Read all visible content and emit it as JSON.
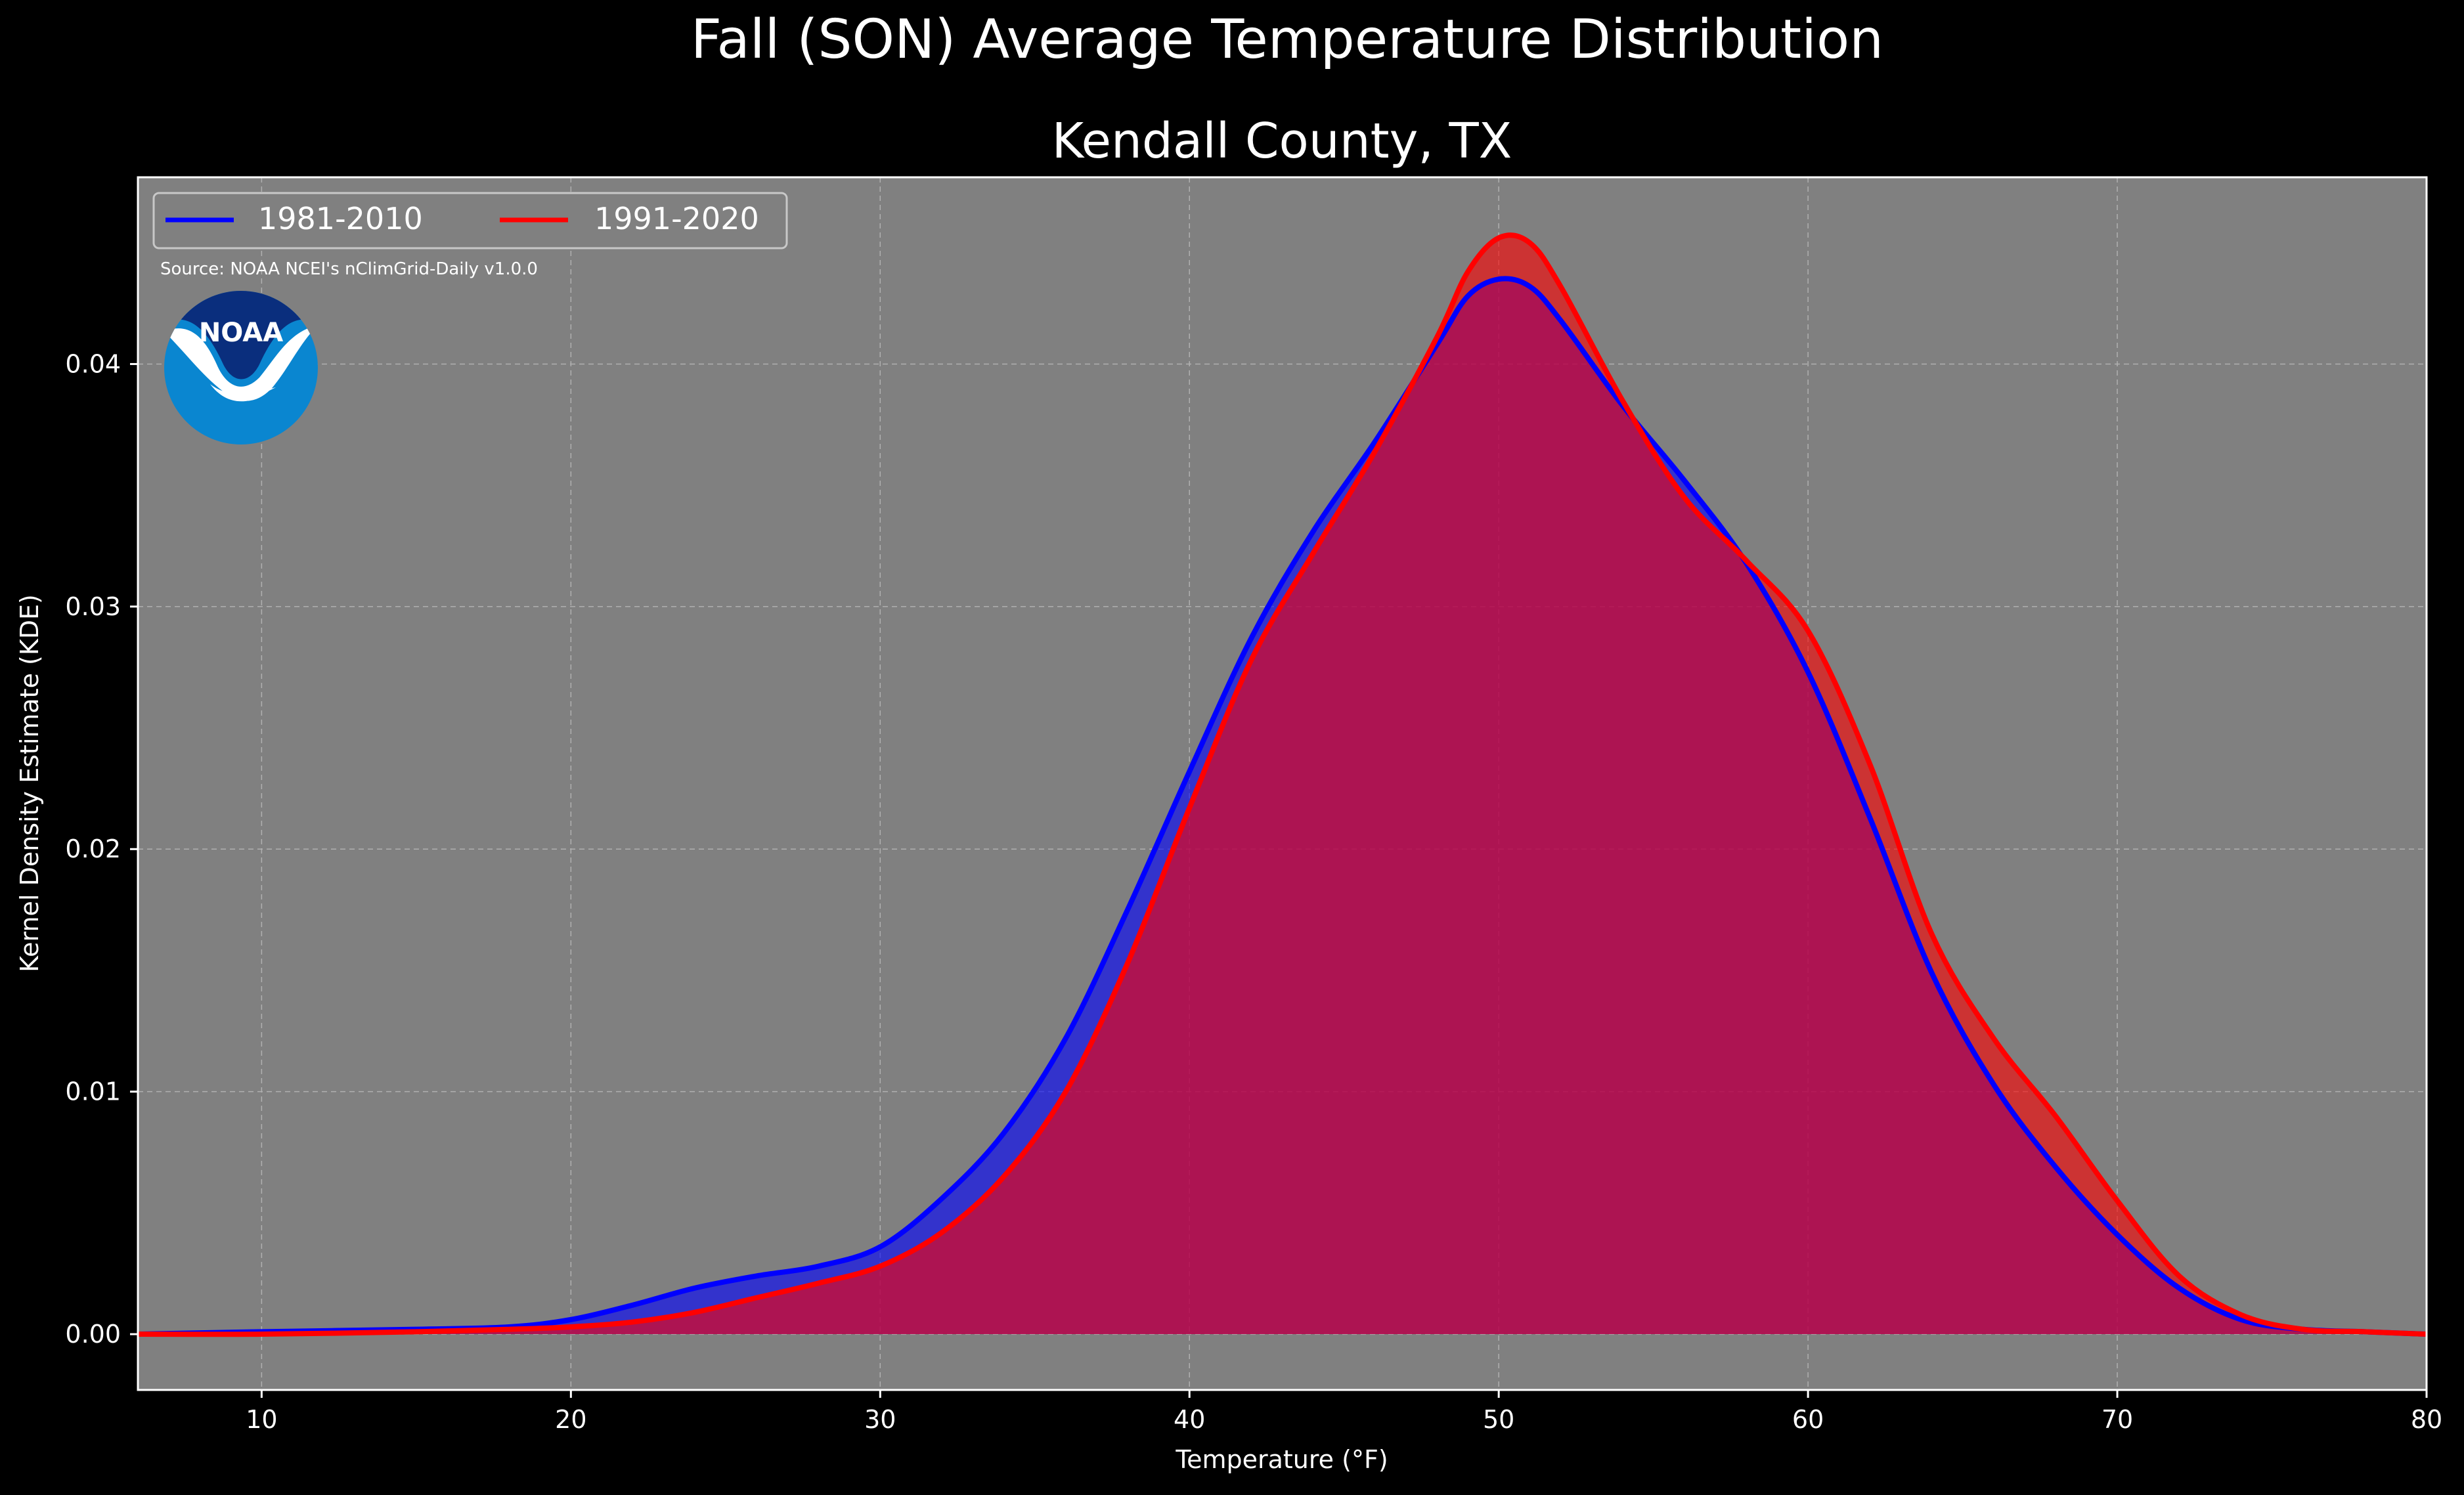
{
  "title": "Fall (SON) Average Temperature Distribution",
  "subtitle": "Kendall County, TX",
  "source": "Source: NOAA NCEI's nClimGrid-Daily v1.0.0",
  "logo_text": "NOAA",
  "colors": {
    "background": "#000000",
    "plot_bg": "#808080",
    "series_1981": "#0000ff",
    "series_1991": "#ff0000",
    "text": "#ffffff",
    "noaa_dark": "#0a2e7d",
    "noaa_light": "#0a86d0"
  },
  "chart_data": {
    "type": "area",
    "title": "Fall (SON) Average Temperature Distribution",
    "subtitle": "Kendall County, TX",
    "xlabel": "Temperature (°F)",
    "ylabel": "Kernel Density Estimate (KDE)",
    "xlim": [
      6,
      80
    ],
    "ylim": [
      -0.0023,
      0.0477
    ],
    "xticks": [
      10,
      20,
      30,
      40,
      50,
      60,
      70,
      80
    ],
    "yticks": [
      0.0,
      0.01,
      0.02,
      0.03,
      0.04
    ],
    "ytick_labels": [
      "0.00",
      "0.01",
      "0.02",
      "0.03",
      "0.04"
    ],
    "grid": true,
    "legend_position": "top-left",
    "series": [
      {
        "name": "1981-2010",
        "color": "#0000ff",
        "x": [
          6,
          10,
          15,
          18,
          20,
          22,
          24,
          26,
          28,
          30,
          32,
          34,
          36,
          38,
          40,
          42,
          44,
          46,
          48,
          49,
          50,
          51,
          52,
          54,
          56,
          58,
          60,
          62,
          64,
          66,
          68,
          70,
          72,
          74,
          76,
          78,
          80
        ],
        "y": [
          0.0,
          0.0001,
          0.0002,
          0.0003,
          0.0006,
          0.0012,
          0.0019,
          0.0024,
          0.0028,
          0.0036,
          0.0056,
          0.0083,
          0.0122,
          0.0175,
          0.0232,
          0.0287,
          0.0331,
          0.0368,
          0.0408,
          0.0428,
          0.0435,
          0.0432,
          0.0418,
          0.0383,
          0.0352,
          0.0318,
          0.0273,
          0.0213,
          0.0149,
          0.0103,
          0.0069,
          0.0041,
          0.0019,
          0.0006,
          0.0002,
          0.0001,
          0.0
        ]
      },
      {
        "name": "1991-2020",
        "color": "#ff0000",
        "x": [
          6,
          10,
          15,
          18,
          20,
          22,
          24,
          26,
          28,
          30,
          32,
          34,
          36,
          38,
          40,
          42,
          44,
          46,
          48,
          49,
          50,
          51,
          52,
          54,
          56,
          58,
          60,
          62,
          64,
          66,
          68,
          70,
          72,
          74,
          76,
          78,
          80
        ],
        "y": [
          0.0,
          0.0,
          0.0001,
          0.0002,
          0.0003,
          0.0005,
          0.0009,
          0.0015,
          0.0021,
          0.0028,
          0.0042,
          0.0065,
          0.01,
          0.0153,
          0.0217,
          0.0278,
          0.0322,
          0.0364,
          0.0411,
          0.0438,
          0.0452,
          0.045,
          0.0432,
          0.0385,
          0.0345,
          0.0319,
          0.029,
          0.0235,
          0.0165,
          0.0122,
          0.009,
          0.0055,
          0.0024,
          0.0008,
          0.0002,
          0.0001,
          0.0
        ]
      }
    ]
  }
}
